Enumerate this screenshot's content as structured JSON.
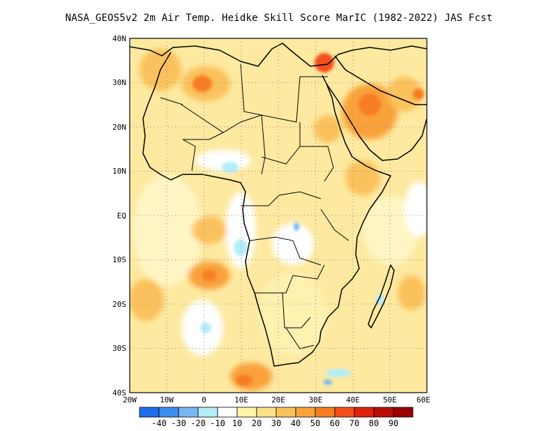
{
  "title": "NASA_GEOS5v2  2m Air Temp. Heidke Skill Score MarIC (1982-2022) JAS Fcst",
  "map": {
    "lat_labels": [
      "40N",
      "30N",
      "20N",
      "10N",
      "EQ",
      "10S",
      "20S",
      "30S",
      "40S"
    ],
    "lon_labels": [
      "20W",
      "10W",
      "0",
      "10E",
      "20E",
      "30E",
      "40E",
      "50E",
      "60E"
    ],
    "lon_range": [
      -20,
      60
    ],
    "lat_range": [
      -40,
      40
    ],
    "grid": "dotted"
  },
  "colorbar": {
    "labels": [
      "-40",
      "-30",
      "-20",
      "-10",
      "10",
      "20",
      "30",
      "40",
      "50",
      "60",
      "70",
      "80",
      "90"
    ],
    "colors": [
      "#1e6ee8",
      "#3c8ef0",
      "#78b6f5",
      "#b4ecf8",
      "#ffffff",
      "#fff5a8",
      "#fde08a",
      "#fbc15c",
      "#f9a23a",
      "#f87d22",
      "#f2501b",
      "#e0220f",
      "#bb0d06",
      "#9a0303"
    ]
  }
}
